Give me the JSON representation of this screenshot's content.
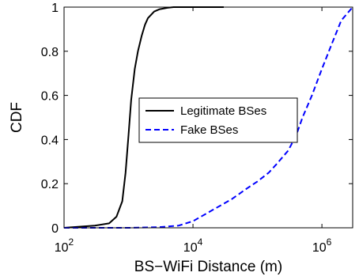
{
  "chart_data": {
    "type": "line",
    "title": "",
    "xlabel": "BS−WiFi Distance (m)",
    "ylabel": "CDF",
    "x_scale": "log",
    "xlim": [
      100,
      3000000
    ],
    "ylim": [
      0,
      1
    ],
    "x_ticks": [
      {
        "value": 100,
        "base": "10",
        "exp": "2"
      },
      {
        "value": 10000,
        "base": "10",
        "exp": "4"
      },
      {
        "value": 1000000,
        "base": "10",
        "exp": "6"
      }
    ],
    "y_ticks": [
      {
        "value": 0,
        "label": "0"
      },
      {
        "value": 0.2,
        "label": "0.2"
      },
      {
        "value": 0.4,
        "label": "0.4"
      },
      {
        "value": 0.6,
        "label": "0.6"
      },
      {
        "value": 0.8,
        "label": "0.8"
      },
      {
        "value": 1,
        "label": "1"
      }
    ],
    "legend_position": "center-right",
    "series": [
      {
        "name": "Legitimate BSes",
        "color": "#000000",
        "style": "solid",
        "x": [
          100,
          300,
          500,
          650,
          800,
          900,
          1000,
          1100,
          1250,
          1400,
          1600,
          1800,
          2000,
          2500,
          3000,
          4000,
          5000,
          7000,
          10000,
          30000
        ],
        "y": [
          0.0,
          0.01,
          0.02,
          0.05,
          0.12,
          0.25,
          0.42,
          0.58,
          0.72,
          0.8,
          0.87,
          0.92,
          0.95,
          0.98,
          0.99,
          0.997,
          1.0,
          1.0,
          1.0,
          1.0
        ]
      },
      {
        "name": "Fake BSes",
        "color": "#0000ff",
        "style": "dashed",
        "x": [
          100,
          1000,
          3000,
          6000,
          10000,
          20000,
          40000,
          70000,
          100000,
          150000,
          200000,
          300000,
          400000,
          500000,
          700000,
          1000000,
          1500000,
          2000000,
          3000000
        ],
        "y": [
          0.0,
          0.0,
          0.003,
          0.01,
          0.03,
          0.08,
          0.13,
          0.18,
          0.21,
          0.25,
          0.29,
          0.35,
          0.42,
          0.5,
          0.6,
          0.72,
          0.85,
          0.94,
          1.0
        ]
      }
    ]
  }
}
